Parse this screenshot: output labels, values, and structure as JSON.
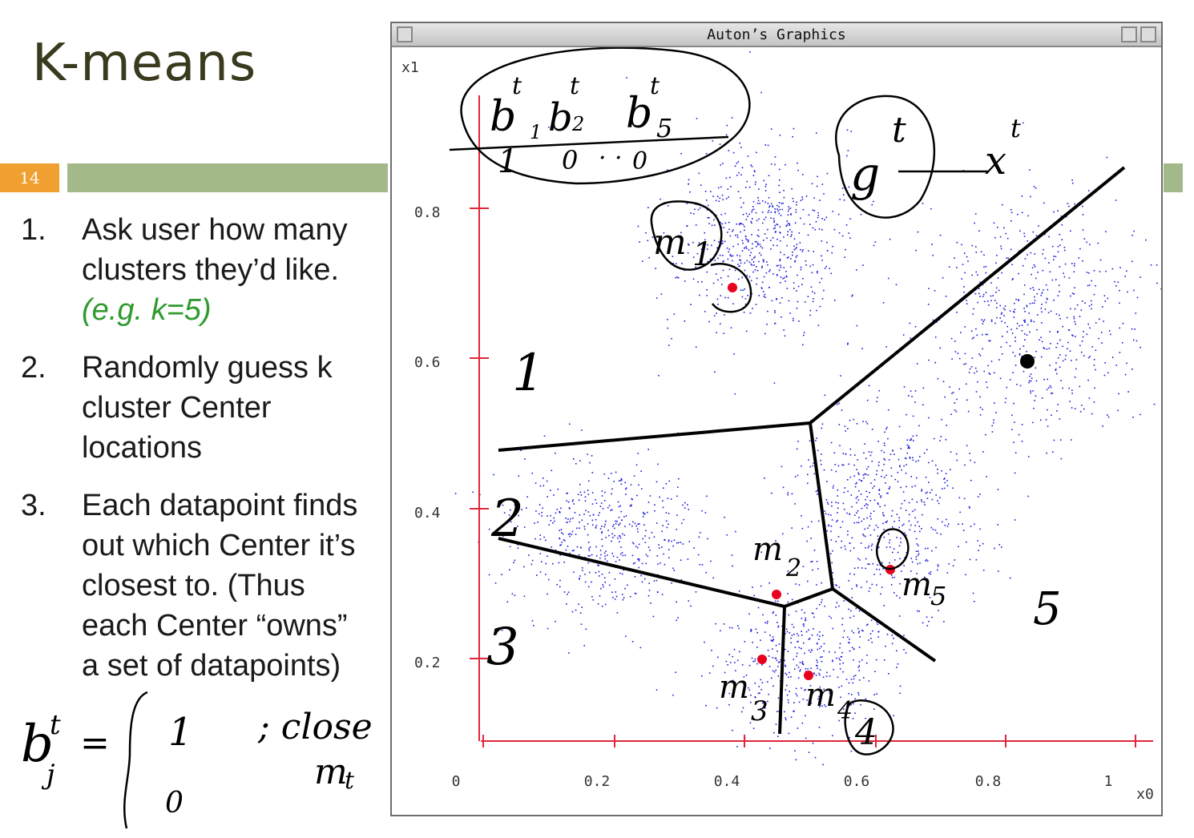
{
  "slide": {
    "title": "K-means",
    "number": "14",
    "steps": [
      {
        "num": "1.",
        "lines": [
          "Ask user how many",
          "clusters they’d like."
        ],
        "note": "(e.g. k=5)"
      },
      {
        "num": "2.",
        "lines": [
          "Randomly guess k",
          "cluster Center",
          "locations"
        ],
        "note": ""
      },
      {
        "num": "3.",
        "lines": [
          "Each datapoint finds",
          "out which Center it’s",
          "closest to. (Thus",
          "each Center “owns”",
          "a set of datapoints)"
        ],
        "note": ""
      }
    ]
  },
  "window": {
    "title": "Auton’s Graphics",
    "buttons": [
      "menu-icon",
      "minimize-icon",
      "maximize-icon"
    ]
  },
  "plot": {
    "x_axis_label": "x0",
    "y_axis_label": "x1",
    "x_ticks": [
      "0",
      "0.2",
      "0.4",
      "0.6",
      "0.8",
      "1"
    ],
    "y_ticks": [
      "0.8",
      "0.6",
      "0.4",
      "0.2"
    ],
    "center_color": "#e8001c",
    "point_color": "#1a1adc",
    "axis_color": "#e0263a"
  },
  "annotations": {
    "indicators": [
      "b",
      "t",
      "1",
      "b",
      "t",
      "2",
      "b",
      "t",
      "5",
      "1",
      "0",
      "·",
      "·",
      "0"
    ],
    "g_label": "g",
    "g_sup": "t",
    "x_label": "x",
    "x_sup": "t",
    "center_labels": [
      "m",
      "1",
      "m",
      "2",
      "m",
      "3",
      "m",
      "4",
      "m",
      "5"
    ],
    "region_labels": [
      "1",
      "2",
      "3",
      "4",
      "5"
    ],
    "formula": [
      "b",
      "t",
      "j",
      "=",
      "1",
      "0",
      "; close",
      "m",
      "t"
    ]
  }
}
